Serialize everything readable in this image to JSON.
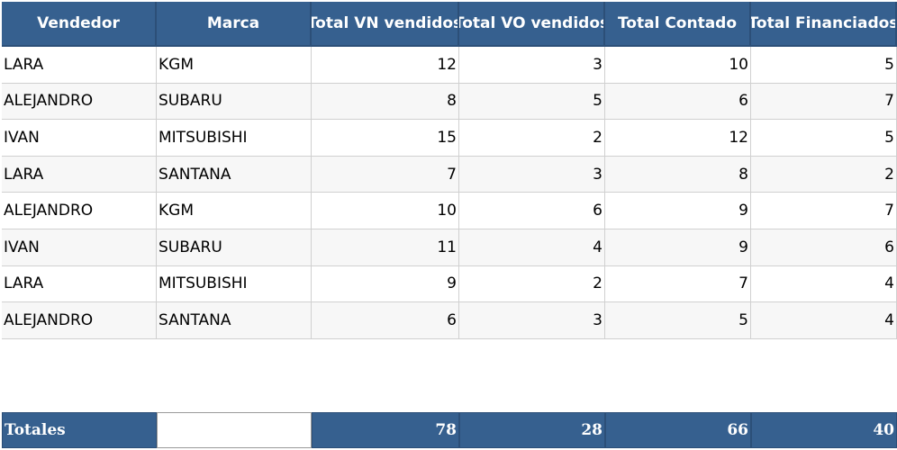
{
  "table": {
    "columns": [
      "Vendedor",
      "Marca",
      "Total VN vendidos",
      "Total VO vendidos",
      "Total Contado",
      "Total Financiados"
    ],
    "rows": [
      [
        "LARA",
        "KGM",
        12,
        3,
        10,
        5
      ],
      [
        "ALEJANDRO",
        "SUBARU",
        8,
        5,
        6,
        7
      ],
      [
        "IVAN",
        "MITSUBISHI",
        15,
        2,
        12,
        5
      ],
      [
        "LARA",
        "SANTANA",
        7,
        3,
        8,
        2
      ],
      [
        "ALEJANDRO",
        "KGM",
        10,
        6,
        9,
        7
      ],
      [
        "IVAN",
        "SUBARU",
        11,
        4,
        9,
        6
      ],
      [
        "LARA",
        "MITSUBISHI",
        9,
        2,
        7,
        4
      ],
      [
        "ALEJANDRO",
        "SANTANA",
        6,
        3,
        5,
        4
      ]
    ]
  },
  "totals": {
    "label": "Totales",
    "values": [
      78,
      28,
      66,
      40
    ]
  }
}
